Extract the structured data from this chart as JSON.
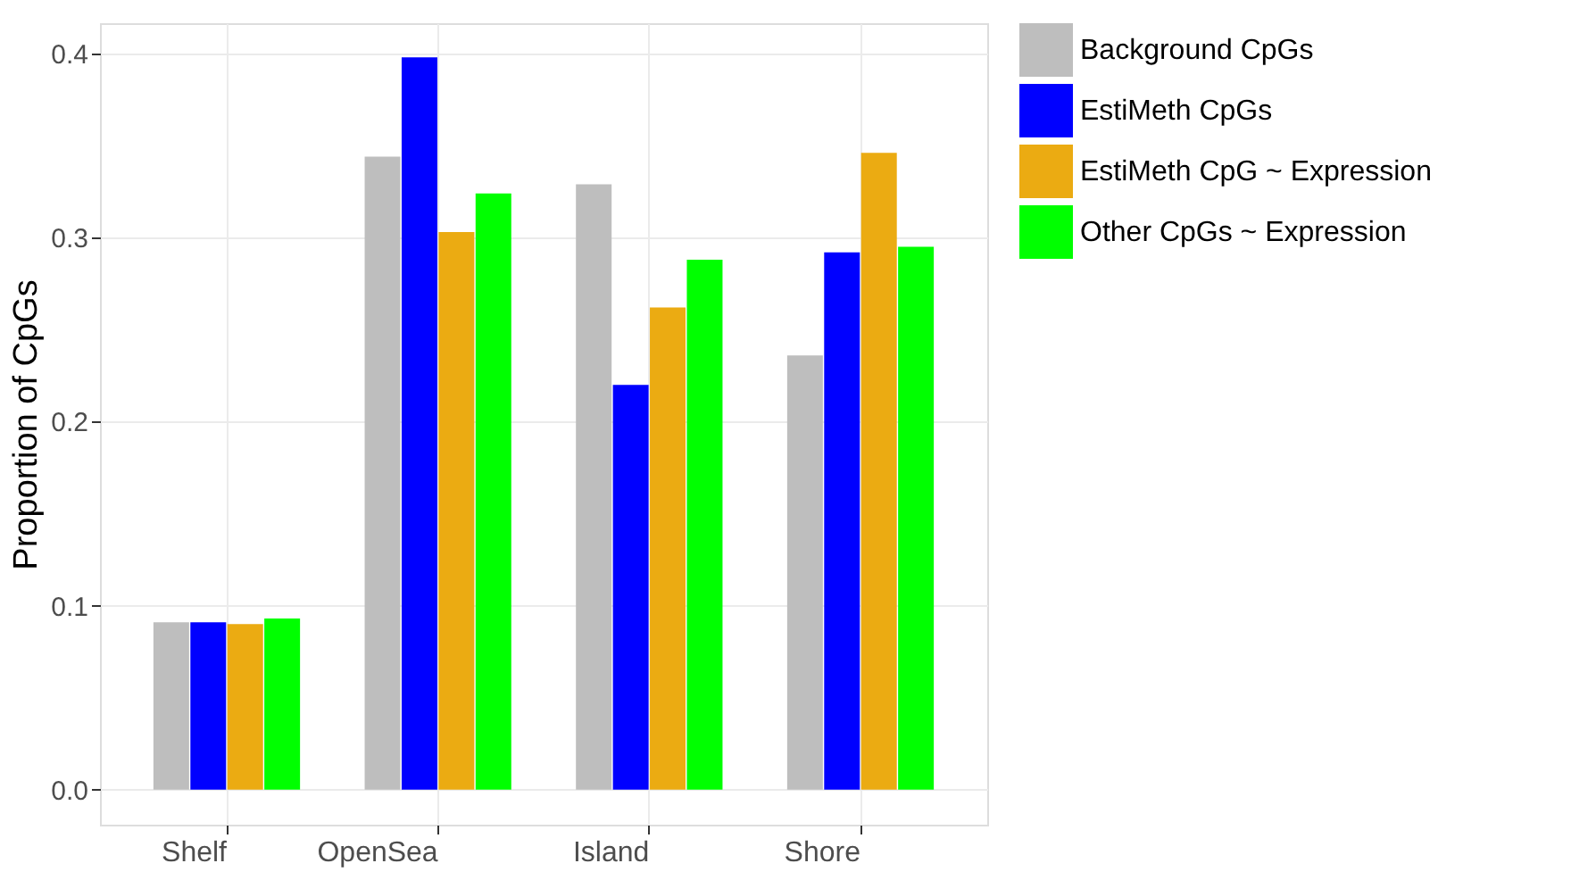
{
  "chart_data": {
    "type": "bar",
    "ylabel": "Proportion of CpGs",
    "categories": [
      "Shelf",
      "OpenSea",
      "Island",
      "Shore"
    ],
    "series": [
      {
        "name": "Background CpGs",
        "color": "#bebebe",
        "values": [
          0.091,
          0.344,
          0.329,
          0.236
        ]
      },
      {
        "name": "EstiMeth CpGs",
        "color": "#0000ff",
        "values": [
          0.091,
          0.398,
          0.22,
          0.292
        ]
      },
      {
        "name": "EstiMeth CpG ~ Expression",
        "color": "#ebab12",
        "values": [
          0.09,
          0.303,
          0.262,
          0.346
        ]
      },
      {
        "name": "Other CpGs ~ Expression",
        "color": "#00ff00",
        "values": [
          0.093,
          0.324,
          0.288,
          0.295
        ]
      }
    ],
    "ylim": [
      -0.019,
      0.4165
    ],
    "yticks": [
      {
        "value": 0,
        "label": "0.0"
      },
      {
        "value": 0.1,
        "label": "0.1"
      },
      {
        "value": 0.2,
        "label": "0.2"
      },
      {
        "value": 0.3,
        "label": "0.3"
      },
      {
        "value": 0.4,
        "label": "0.4"
      }
    ],
    "grid": true,
    "legend": "right"
  }
}
